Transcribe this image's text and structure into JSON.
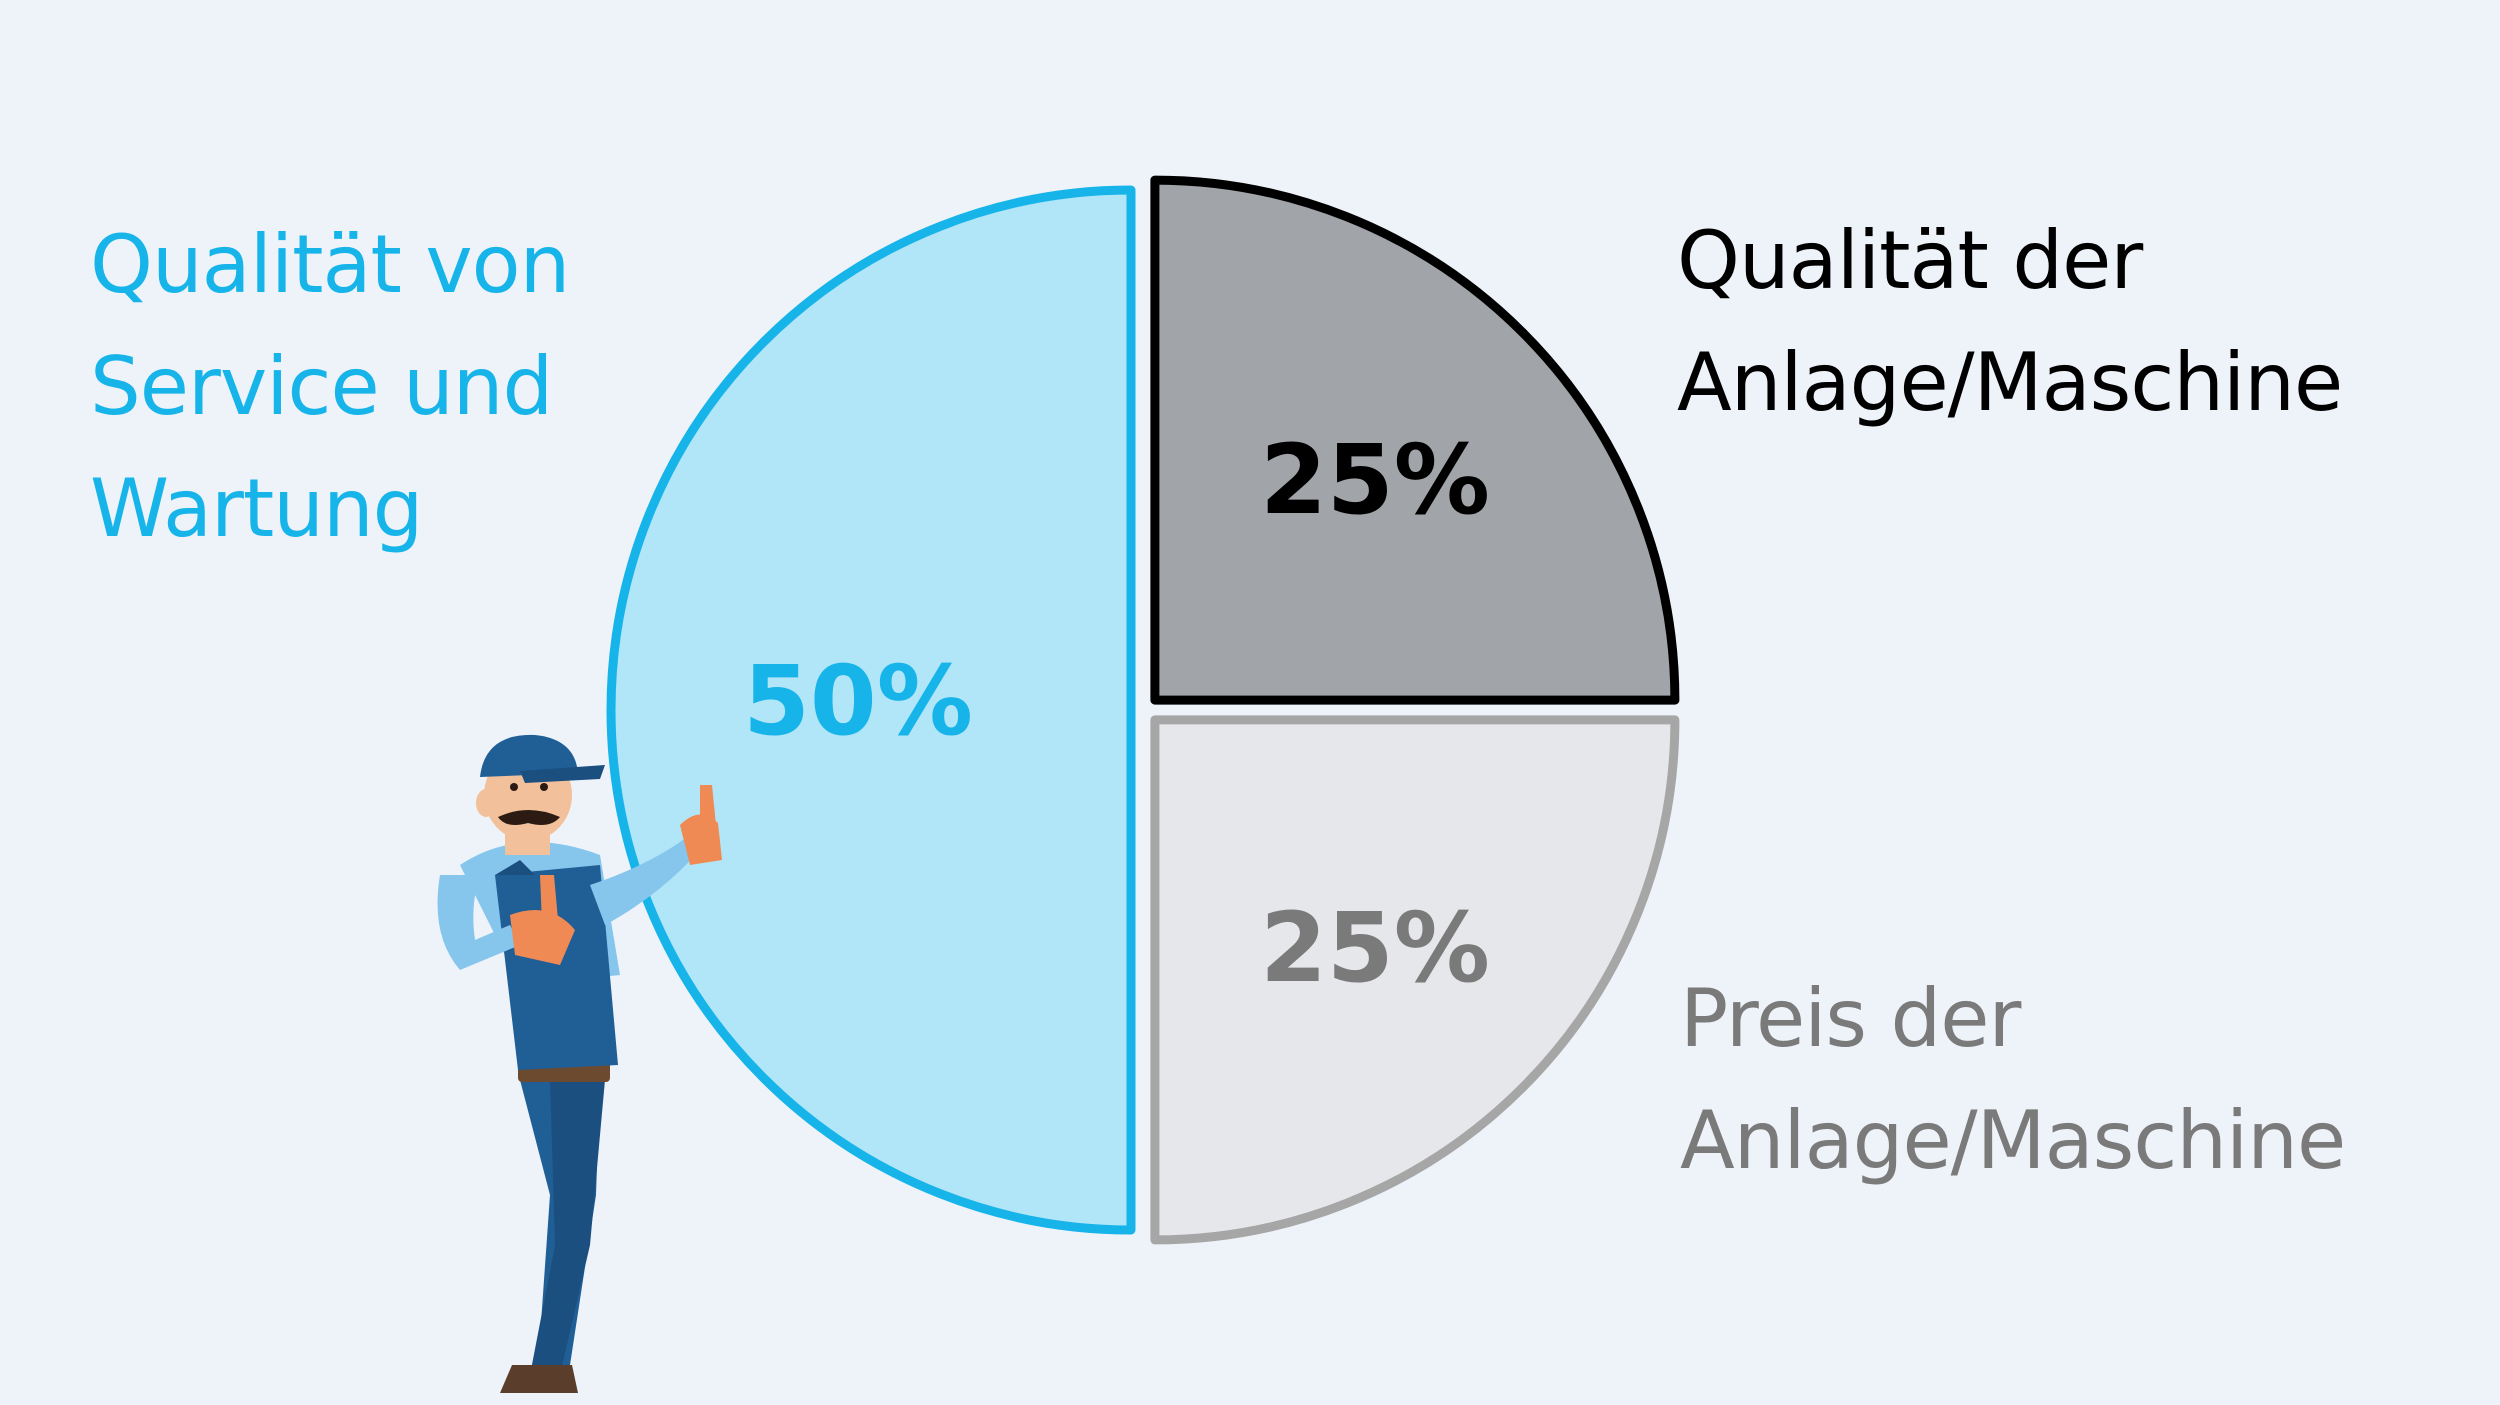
{
  "chart_data": {
    "type": "pie",
    "start": "top",
    "direction": "clockwise",
    "slices": [
      {
        "label_lines": [
          "Qualität der",
          "Anlage/Maschine"
        ],
        "value": 25,
        "value_label": "25%",
        "fill": "#a1a4a8",
        "stroke": "#000000",
        "text_color": "#000000"
      },
      {
        "label_lines": [
          "Preis der",
          "Anlage/Maschine"
        ],
        "value": 25,
        "value_label": "25%",
        "fill": "#e5e7ea",
        "stroke": "#a6a6a6",
        "text_color": "#7a7a7a"
      },
      {
        "label_lines": [
          "Qualität von",
          "Service und",
          "Wartung"
        ],
        "value": 50,
        "value_label": "50%",
        "fill": "#b1e5f8",
        "stroke": "#17b4ea",
        "text_color": "#17b4ea"
      }
    ]
  },
  "illustration": {
    "icon": "mechanic-thumbs-up-icon"
  }
}
